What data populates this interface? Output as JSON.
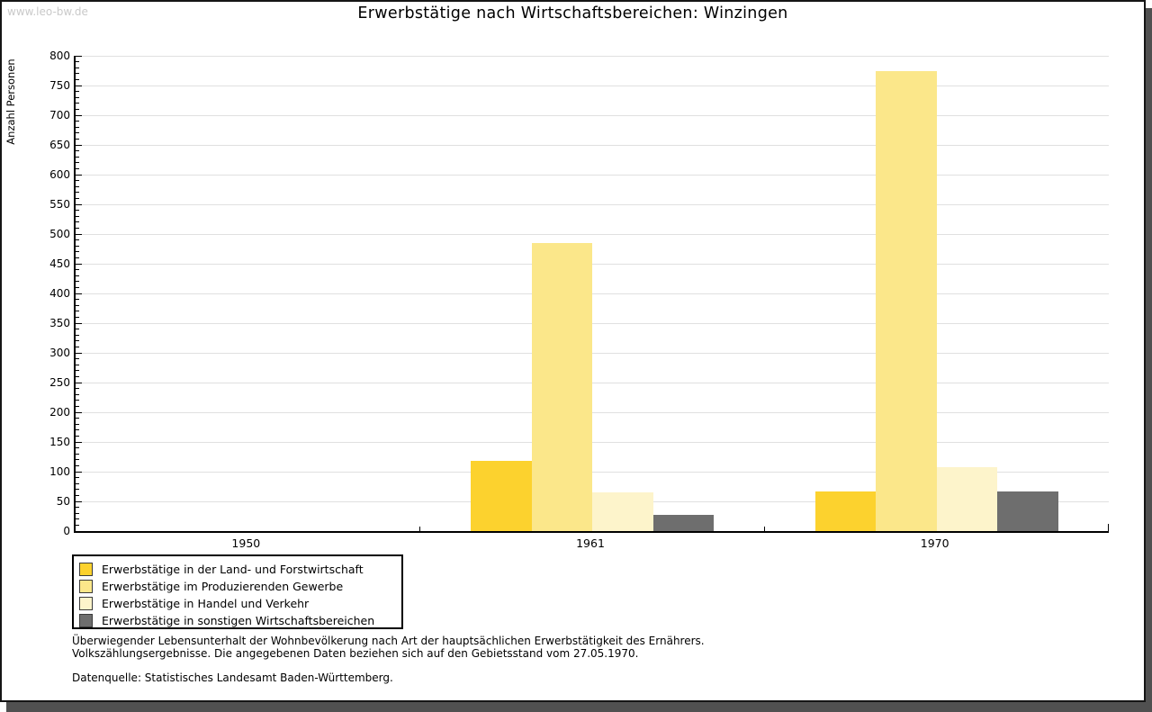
{
  "watermark": "www.leo-bw.de",
  "title": "Erwerbstätige nach Wirtschaftsbereichen: Winzingen",
  "chart_data": {
    "type": "bar",
    "title": "Erwerbstätige nach Wirtschaftsbereichen: Winzingen",
    "xlabel": "",
    "ylabel": "Anzahl Personen",
    "categories": [
      "1950",
      "1961",
      "1970"
    ],
    "series": [
      {
        "name": "Erwerbstätige in der Land- und Forstwirtschaft",
        "color": "#FCD22E",
        "values": [
          0,
          118,
          67
        ]
      },
      {
        "name": "Erwerbstätige im Produzierenden Gewerbe",
        "color": "#FBE78A",
        "values": [
          0,
          485,
          775
        ]
      },
      {
        "name": "Erwerbstätige in Handel und Verkehr",
        "color": "#FDF4CB",
        "values": [
          0,
          65,
          108
        ]
      },
      {
        "name": "Erwerbstätige in sonstigen Wirtschaftsbereichen",
        "color": "#6E6E6E",
        "values": [
          0,
          27,
          67
        ]
      }
    ],
    "ylim": [
      0,
      800
    ],
    "y_tick_step": 50,
    "y_minor_step": 10,
    "grid": true,
    "gridline_color": "#E0E0E0",
    "legend_position": "bottom-left"
  },
  "footer": {
    "line1": "Überwiegender Lebensunterhalt der Wohnbevölkerung nach Art der hauptsächlichen Erwerbstätigkeit des Ernährers.",
    "line2": "Volkszählungsergebnisse. Die angegebenen Daten beziehen sich auf den Gebietsstand vom 27.05.1970.",
    "source": "Datenquelle: Statistisches Landesamt Baden-Württemberg."
  }
}
